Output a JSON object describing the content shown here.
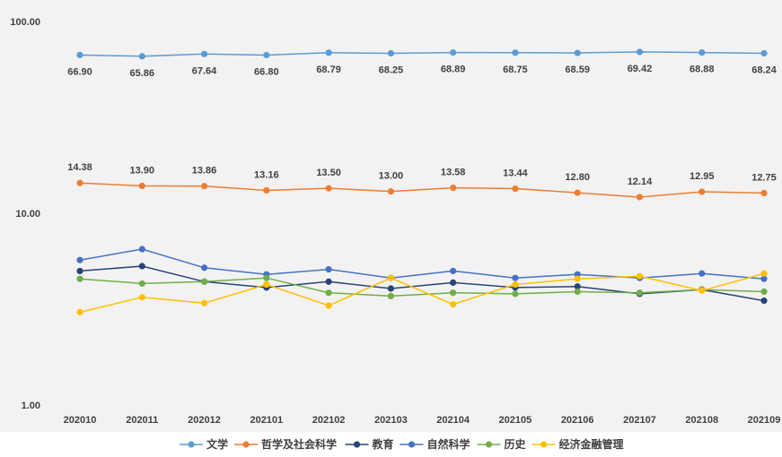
{
  "chart_data": {
    "type": "line",
    "title": "",
    "xlabel": "",
    "ylabel": "",
    "y_scale": "log",
    "ylim": [
      1,
      100
    ],
    "y_ticks": [
      "1.00",
      "10.00",
      "100.00"
    ],
    "categories": [
      "202010",
      "202011",
      "202012",
      "202101",
      "202102",
      "202103",
      "202104",
      "202105",
      "202106",
      "202107",
      "202108",
      "202109"
    ],
    "legend_position": "bottom",
    "series": [
      {
        "name": "文学",
        "color": "#5b9bd5",
        "labeled": true,
        "label_position": "below",
        "values": [
          66.9,
          65.86,
          67.64,
          66.8,
          68.79,
          68.25,
          68.89,
          68.75,
          68.59,
          69.42,
          68.88,
          68.24
        ],
        "labels": [
          "66.90",
          "65.86",
          "67.64",
          "66.80",
          "68.79",
          "68.25",
          "68.89",
          "68.75",
          "68.59",
          "69.42",
          "68.88",
          "68.24"
        ]
      },
      {
        "name": "哲学及社会科学",
        "color": "#ed7d31",
        "labeled": true,
        "label_position": "above",
        "values": [
          14.38,
          13.9,
          13.86,
          13.16,
          13.5,
          13.0,
          13.58,
          13.44,
          12.8,
          12.14,
          12.95,
          12.75
        ],
        "labels": [
          "14.38",
          "13.90",
          "13.86",
          "13.16",
          "13.50",
          "13.00",
          "13.58",
          "13.44",
          "12.80",
          "12.14",
          "12.95",
          "12.75"
        ]
      },
      {
        "name": "教育",
        "color": "#264478",
        "labeled": false,
        "values": [
          5.0,
          5.3,
          4.4,
          4.1,
          4.4,
          4.05,
          4.35,
          4.1,
          4.15,
          3.8,
          4.0,
          3.5
        ]
      },
      {
        "name": "自然科学",
        "color": "#4472c4",
        "labeled": false,
        "values": [
          5.7,
          6.5,
          5.2,
          4.8,
          5.1,
          4.6,
          5.0,
          4.6,
          4.8,
          4.6,
          4.85,
          4.55
        ]
      },
      {
        "name": "历史",
        "color": "#70ad47",
        "labeled": false,
        "values": [
          4.55,
          4.3,
          4.4,
          4.6,
          3.85,
          3.7,
          3.85,
          3.8,
          3.9,
          3.85,
          4.0,
          3.9
        ]
      },
      {
        "name": "经济金融管理",
        "color": "#ffc000",
        "labeled": false,
        "values": [
          3.05,
          3.65,
          3.4,
          4.25,
          3.3,
          4.6,
          3.35,
          4.25,
          4.55,
          4.7,
          3.95,
          4.85
        ]
      }
    ]
  }
}
